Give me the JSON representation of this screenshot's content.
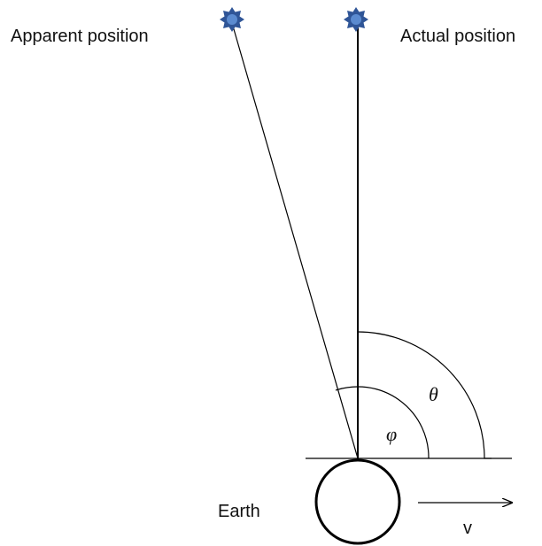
{
  "labels": {
    "apparent": "Apparent position",
    "actual": "Actual position",
    "theta": "θ",
    "phi": "φ",
    "earth": "Earth",
    "velocity": "v"
  }
}
